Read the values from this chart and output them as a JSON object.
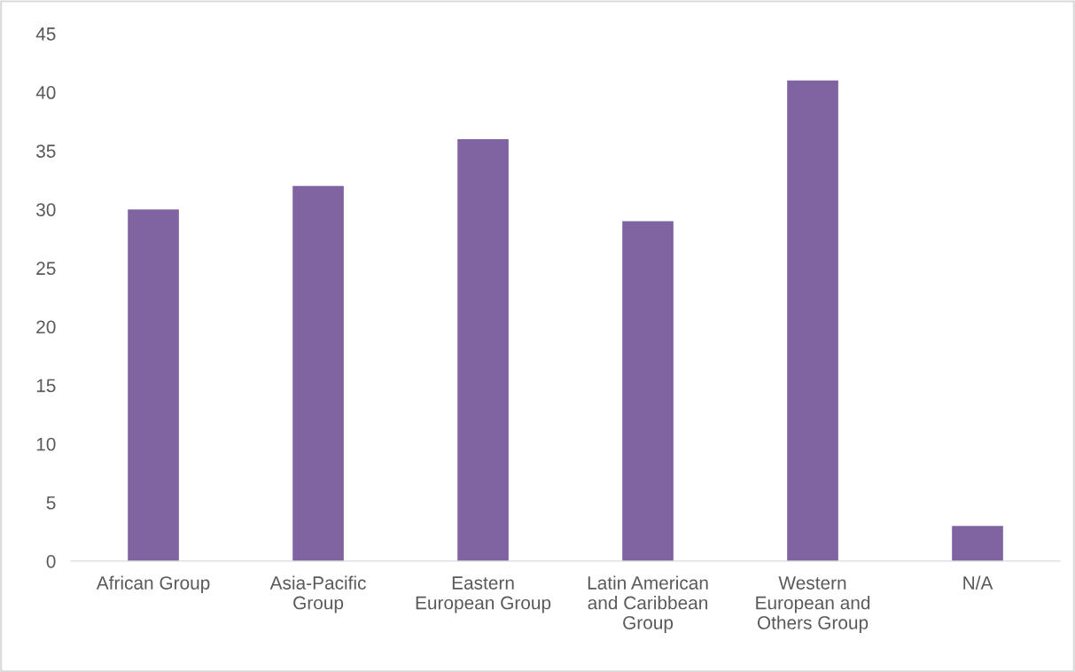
{
  "chart_data": {
    "type": "bar",
    "categories": [
      "African Group",
      "Asia-Pacific\nGroup",
      "Eastern\nEuropean Group",
      "Latin American\nand Caribbean\nGroup",
      "Western\nEuropean and\nOthers Group",
      "N/A"
    ],
    "values": [
      30,
      32,
      36,
      29,
      41,
      3
    ],
    "color": "#8064a2",
    "ylim": [
      0,
      45
    ],
    "yticks": [
      0,
      5,
      10,
      15,
      20,
      25,
      30,
      35,
      40,
      45
    ],
    "grid": false,
    "legend": false
  }
}
